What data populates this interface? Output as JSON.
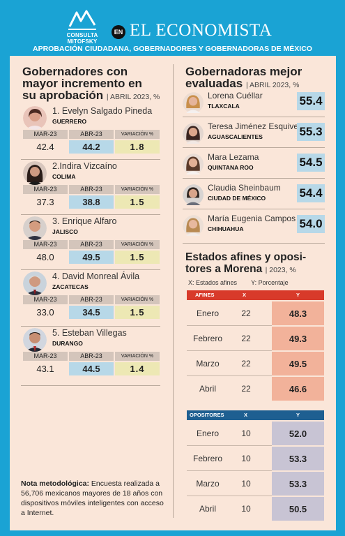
{
  "header": {
    "logo_text": "CONSULTA MITOFSKY",
    "en_badge": "EN",
    "brand": "EL ECONOMISTA",
    "subtitle": "APROBACIÓN CIUDADANA, GOBERNADORES Y GOBERNADORAS DE MÉXICO"
  },
  "left": {
    "title_line1": "Gobernadores con",
    "title_line2": "mayor incremento en",
    "title_line3": "su aprobación",
    "date": "| ABRIL 2023, %",
    "col_mar": "MAR-23",
    "col_abr": "ABR-23",
    "col_var": "VARIACIÓN %",
    "governors": [
      {
        "name": "1. Evelyn Salgado Pineda",
        "state": "GUERRERO",
        "mar": "42.4",
        "abr": "44.2",
        "var": "1.8"
      },
      {
        "name": "2.Indira Vizcaíno",
        "state": "COLIMA",
        "mar": "37.3",
        "abr": "38.8",
        "var": "1.5"
      },
      {
        "name": "3. Enrique Alfaro",
        "state": "JALISCO",
        "mar": "48.0",
        "abr": "49.5",
        "var": "1.5"
      },
      {
        "name": "4. David Monreal Ávila",
        "state": "ZACATECAS",
        "mar": "33.0",
        "abr": "34.5",
        "var": "1.5"
      },
      {
        "name": "5. Esteban Villegas",
        "state": "DURANGO",
        "mar": "43.1",
        "abr": "44.5",
        "var": "1.4"
      }
    ],
    "note_bold": "Nota metodológica:",
    "note_text": " Encuesta realizada a 56,706 mexicanos mayores de 18 años con dispositivos móviles inteligentes con acceso a Internet."
  },
  "right": {
    "title_line1": "Gobernadoras mejor",
    "title_line2": "evaluadas",
    "date": "| ABRIL 2023, %",
    "governors": [
      {
        "name": "Lorena Cuéllar",
        "state": "TLAXCALA",
        "score": "55.4"
      },
      {
        "name": "Teresa Jiménez Esquivel",
        "state": "AGUASCALIENTES",
        "score": "55.3"
      },
      {
        "name": "Mara Lezama",
        "state": "QUINTANA ROO",
        "score": "54.5"
      },
      {
        "name": "Claudia Sheinbaum",
        "state": "CIUDAD DE MÉXICO",
        "score": "54.4"
      },
      {
        "name": "María Eugenia Campos",
        "state": "CHIHUAHUA",
        "score": "54.0"
      }
    ],
    "states_title_line1": "Estados afines y oposi-",
    "states_title_line2": "tores a Morena",
    "states_date": "| 2023, %",
    "legend_x": "X: Estados afines",
    "legend_y": "Y: Porcentaje",
    "afines": {
      "label": "AFINES",
      "x_label": "X",
      "y_label": "Y",
      "rows": [
        {
          "month": "Enero",
          "x": "22",
          "y": "48.3"
        },
        {
          "month": "Febrero",
          "x": "22",
          "y": "49.3"
        },
        {
          "month": "Marzo",
          "x": "22",
          "y": "49.5"
        },
        {
          "month": "Abril",
          "x": "22",
          "y": "46.6"
        }
      ]
    },
    "opositores": {
      "label": "OPOSITORES",
      "x_label": "X",
      "y_label": "Y",
      "rows": [
        {
          "month": "Enero",
          "x": "10",
          "y": "52.0"
        },
        {
          "month": "Febrero",
          "x": "10",
          "y": "53.3"
        },
        {
          "month": "Marzo",
          "x": "10",
          "y": "53.3"
        },
        {
          "month": "Abril",
          "x": "10",
          "y": "50.5"
        }
      ]
    }
  },
  "colors": {
    "frame": "#1aa3d4",
    "panel": "#fae6d9",
    "abr_cell": "#b7d8e8",
    "var_cell": "#ede8b4",
    "afines_head": "#d83a2a",
    "afines_y": "#f2b29a",
    "opos_head": "#1e5f91",
    "opos_y": "#c8c4d4"
  }
}
